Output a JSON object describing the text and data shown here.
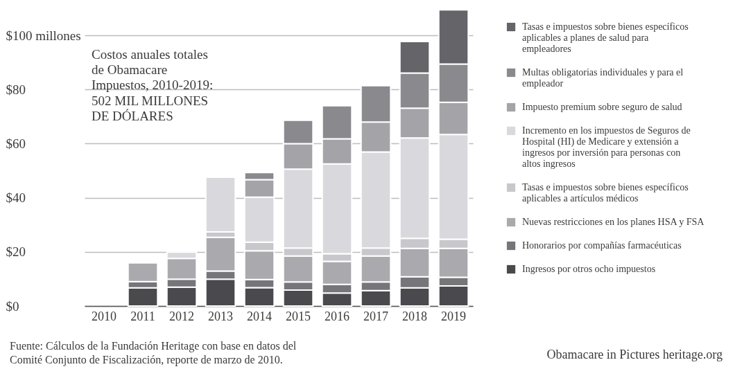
{
  "chart_data": {
    "type": "bar",
    "stacked": true,
    "title": "Costos anuales totales de Obamacare Impuestos, 2010-2019:",
    "subtitle": "502 MIL MILLONES DE DÓLARES",
    "categories": [
      "2010",
      "2011",
      "2012",
      "2013",
      "2014",
      "2015",
      "2016",
      "2017",
      "2018",
      "2019"
    ],
    "series": [
      {
        "name": "Ingresos por otros ocho impuestos",
        "color": "#4a494d",
        "values": [
          null,
          6.7,
          7.0,
          9.9,
          6.8,
          5.9,
          4.8,
          5.7,
          6.7,
          7.4
        ]
      },
      {
        "name": "Honorarios por compañías farmacéuticas",
        "color": "#767579",
        "values": [
          null,
          2.3,
          2.9,
          3.0,
          3.0,
          3.0,
          3.2,
          3.2,
          4.1,
          3.2
        ]
      },
      {
        "name": "Nuevas restricciones en los planes HSA y FSA",
        "color": "#aaa9ae",
        "values": [
          null,
          6.9,
          7.7,
          12.5,
          10.6,
          9.6,
          8.5,
          9.6,
          10.5,
          10.7
        ]
      },
      {
        "name": "Tasas e impuestos sobre bienes específicos aplicables a artículos médicos",
        "color": "#c8c8cc",
        "values": [
          null,
          null,
          null,
          2.0,
          3.2,
          2.9,
          2.8,
          2.9,
          3.7,
          3.4
        ]
      },
      {
        "name": "Incremento en los impuestos de Seguros de Hospital (HI) de Medicare y extensión a ingresos por inversión para personas con altos ingresos",
        "color": "#d9d9dd",
        "values": [
          null,
          null,
          2.3,
          20.2,
          16.6,
          29.2,
          33.2,
          35.5,
          37.1,
          38.7
        ]
      },
      {
        "name": "Impuesto premium sobre seguro de salud",
        "color": "#a4a3a8",
        "values": [
          null,
          null,
          null,
          null,
          6.5,
          9.4,
          9.3,
          11.1,
          11.0,
          11.9
        ]
      },
      {
        "name": "Multas obligatorias individuales y para el empleador",
        "color": "#8a898e",
        "values": [
          null,
          null,
          null,
          null,
          2.6,
          8.6,
          12.2,
          13.4,
          13.0,
          14.1
        ]
      },
      {
        "name": "Tasas e impuestos sobre bienes específicos aplicables a planes de salud para empleadores",
        "color": "#656469",
        "values": [
          null,
          null,
          null,
          null,
          null,
          null,
          null,
          null,
          11.6,
          20.0
        ]
      }
    ],
    "ylim": [
      0,
      110
    ],
    "yticks": [
      {
        "value": 0,
        "label": "$0"
      },
      {
        "value": 20,
        "label": "$20"
      },
      {
        "value": 40,
        "label": "$40"
      },
      {
        "value": 60,
        "label": "$60"
      },
      {
        "value": 80,
        "label": "$80"
      },
      {
        "value": 100,
        "label": "$100 millones"
      }
    ],
    "grid": "y",
    "legend": "right",
    "annotations": [
      "Fuente: Cálculos de la Fundación Heritage con base en datos del Comité Conjunto de Fiscalización, reporte de marzo de 2010.",
      "Obamacare in Pictures heritage.org"
    ]
  }
}
